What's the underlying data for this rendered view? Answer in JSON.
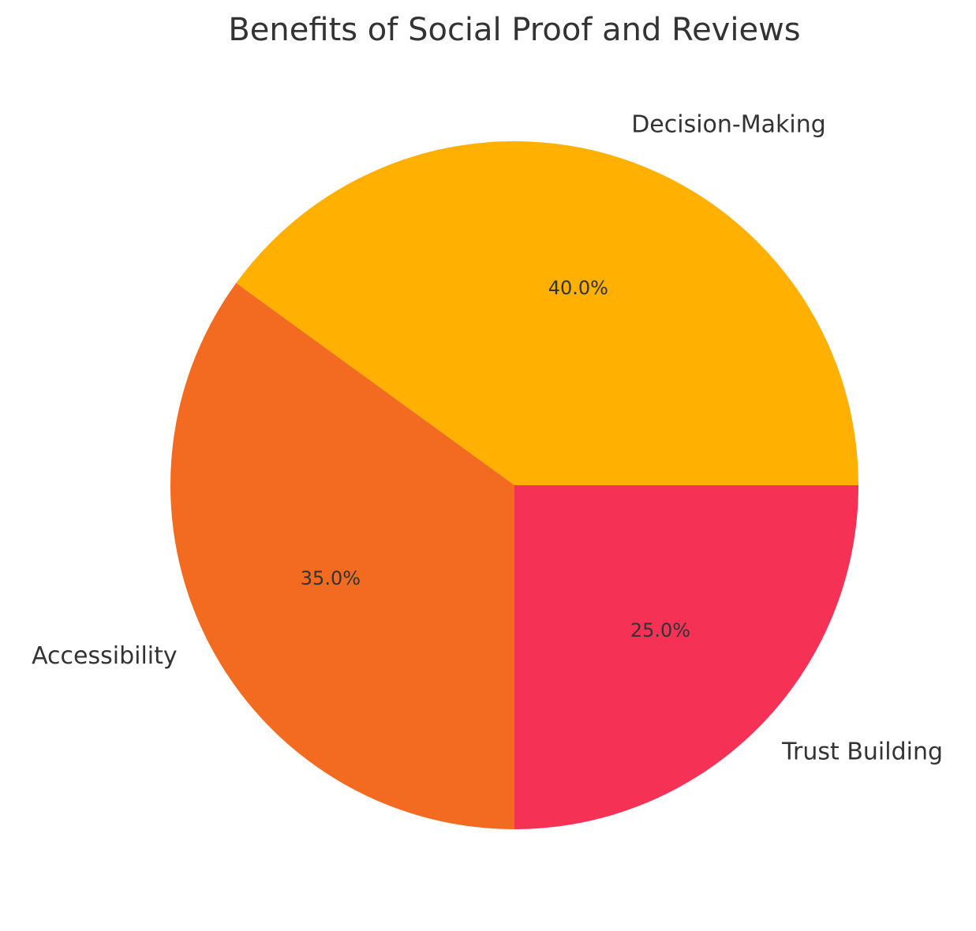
{
  "chart_data": {
    "type": "pie",
    "title": "Benefits of Social Proof and Reviews",
    "categories": [
      "Decision-Making",
      "Accessibility",
      "Trust Building"
    ],
    "values": [
      40,
      35,
      25
    ],
    "value_labels": [
      "40.0%",
      "35.0%",
      "25.0%"
    ],
    "colors": [
      "#ffb000",
      "#f26b21",
      "#f53255"
    ]
  }
}
